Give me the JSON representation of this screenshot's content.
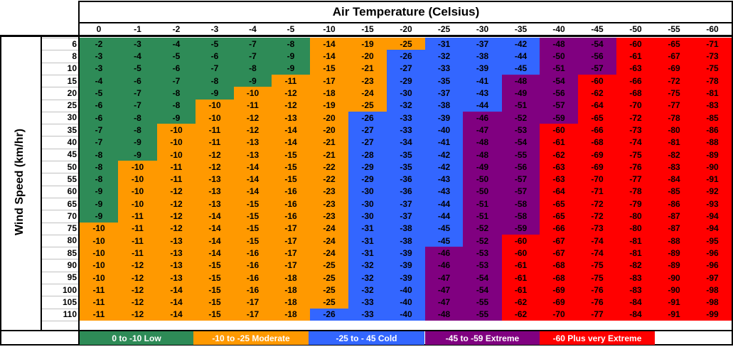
{
  "title": "Air Temperature (Celsius)",
  "ylabel": "Wind Speed (km/hr)",
  "temps": [
    "0",
    "-1",
    "-2",
    "-3",
    "-4",
    "-5",
    "-10",
    "-15",
    "-20",
    "-25",
    "-30",
    "-35",
    "-40",
    "-45",
    "-50",
    "-55",
    "-60"
  ],
  "speeds": [
    "6",
    "8",
    "10",
    "15",
    "20",
    "25",
    "30",
    "35",
    "40",
    "45",
    "50",
    "55",
    "60",
    "65",
    "70",
    "75",
    "80",
    "85",
    "90",
    "95",
    "100",
    "105",
    "110"
  ],
  "values": [
    [
      "-2",
      "-3",
      "-4",
      "-5",
      "-7",
      "-8",
      "-14",
      "-19",
      "-25",
      "-31",
      "-37",
      "-42",
      "-48",
      "-54",
      "-60",
      "-65",
      "-71"
    ],
    [
      "-3",
      "-4",
      "-5",
      "-6",
      "-7",
      "-9",
      "-14",
      "-20",
      "-26",
      "-32",
      "-38",
      "-44",
      "-50",
      "-56",
      "-61",
      "-67",
      "-73"
    ],
    [
      "-3",
      "-5",
      "-6",
      "-7",
      "-8",
      "-9",
      "-15",
      "-21",
      "-27",
      "-33",
      "-39",
      "-45",
      "-51",
      "-57",
      "-63",
      "-69",
      "-75"
    ],
    [
      "-4",
      "-6",
      "-7",
      "-8",
      "-9",
      "-11",
      "-17",
      "-23",
      "-29",
      "-35",
      "-41",
      "-48",
      "-54",
      "-60",
      "-66",
      "-72",
      "-78"
    ],
    [
      "-5",
      "-7",
      "-8",
      "-9",
      "-10",
      "-12",
      "-18",
      "-24",
      "-30",
      "-37",
      "-43",
      "-49",
      "-56",
      "-62",
      "-68",
      "-75",
      "-81"
    ],
    [
      "-6",
      "-7",
      "-8",
      "-10",
      "-11",
      "-12",
      "-19",
      "-25",
      "-32",
      "-38",
      "-44",
      "-51",
      "-57",
      "-64",
      "-70",
      "-77",
      "-83"
    ],
    [
      "-6",
      "-8",
      "-9",
      "-10",
      "-12",
      "-13",
      "-20",
      "-26",
      "-33",
      "-39",
      "-46",
      "-52",
      "-59",
      "-65",
      "-72",
      "-78",
      "-85"
    ],
    [
      "-7",
      "-8",
      "-10",
      "-11",
      "-12",
      "-14",
      "-20",
      "-27",
      "-33",
      "-40",
      "-47",
      "-53",
      "-60",
      "-66",
      "-73",
      "-80",
      "-86"
    ],
    [
      "-7",
      "-9",
      "-10",
      "-11",
      "-13",
      "-14",
      "-21",
      "-27",
      "-34",
      "-41",
      "-48",
      "-54",
      "-61",
      "-68",
      "-74",
      "-81",
      "-88"
    ],
    [
      "-8",
      "-9",
      "-10",
      "-12",
      "-13",
      "-15",
      "-21",
      "-28",
      "-35",
      "-42",
      "-48",
      "-55",
      "-62",
      "-69",
      "-75",
      "-82",
      "-89"
    ],
    [
      "-8",
      "-10",
      "-11",
      "-12",
      "-14",
      "-15",
      "-22",
      "-29",
      "-35",
      "-42",
      "-49",
      "-56",
      "-63",
      "-69",
      "-76",
      "-83",
      "-90"
    ],
    [
      "-8",
      "-10",
      "-11",
      "-13",
      "-14",
      "-15",
      "-22",
      "-29",
      "-36",
      "-43",
      "-50",
      "-57",
      "-63",
      "-70",
      "-77",
      "-84",
      "-91"
    ],
    [
      "-9",
      "-10",
      "-12",
      "-13",
      "-14",
      "-16",
      "-23",
      "-30",
      "-36",
      "-43",
      "-50",
      "-57",
      "-64",
      "-71",
      "-78",
      "-85",
      "-92"
    ],
    [
      "-9",
      "-10",
      "-12",
      "-13",
      "-15",
      "-16",
      "-23",
      "-30",
      "-37",
      "-44",
      "-51",
      "-58",
      "-65",
      "-72",
      "-79",
      "-86",
      "-93"
    ],
    [
      "-9",
      "-11",
      "-12",
      "-14",
      "-15",
      "-16",
      "-23",
      "-30",
      "-37",
      "-44",
      "-51",
      "-58",
      "-65",
      "-72",
      "-80",
      "-87",
      "-94"
    ],
    [
      "-10",
      "-11",
      "-12",
      "-14",
      "-15",
      "-17",
      "-24",
      "-31",
      "-38",
      "-45",
      "-52",
      "-59",
      "-66",
      "-73",
      "-80",
      "-87",
      "-94"
    ],
    [
      "-10",
      "-11",
      "-13",
      "-14",
      "-15",
      "-17",
      "-24",
      "-31",
      "-38",
      "-45",
      "-52",
      "-60",
      "-67",
      "-74",
      "-81",
      "-88",
      "-95"
    ],
    [
      "-10",
      "-11",
      "-13",
      "-14",
      "-16",
      "-17",
      "-24",
      "-31",
      "-39",
      "-46",
      "-53",
      "-60",
      "-67",
      "-74",
      "-81",
      "-89",
      "-96"
    ],
    [
      "-10",
      "-12",
      "-13",
      "-15",
      "-16",
      "-17",
      "-25",
      "-32",
      "-39",
      "-46",
      "-53",
      "-61",
      "-68",
      "-75",
      "-82",
      "-89",
      "-96"
    ],
    [
      "-10",
      "-12",
      "-13",
      "-15",
      "-16",
      "-18",
      "-25",
      "-32",
      "-39",
      "-47",
      "-54",
      "-61",
      "-68",
      "-75",
      "-83",
      "-90",
      "-97"
    ],
    [
      "-11",
      "-12",
      "-14",
      "-15",
      "-16",
      "-18",
      "-25",
      "-32",
      "-40",
      "-47",
      "-54",
      "-61",
      "-69",
      "-76",
      "-83",
      "-90",
      "-98"
    ],
    [
      "-11",
      "-12",
      "-14",
      "-15",
      "-17",
      "-18",
      "-25",
      "-33",
      "-40",
      "-47",
      "-55",
      "-62",
      "-69",
      "-76",
      "-84",
      "-91",
      "-98"
    ],
    [
      "-11",
      "-12",
      "-14",
      "-15",
      "-17",
      "-18",
      "-26",
      "-33",
      "-40",
      "-48",
      "-55",
      "-62",
      "-70",
      "-77",
      "-84",
      "-91",
      "-99"
    ]
  ],
  "colors": {
    "low": "#2e8b57",
    "moderate": "#ff9900",
    "cold": "#3366ff",
    "extreme": "#800080",
    "very_extreme": "#ff0000"
  },
  "legend": [
    {
      "label": "0 to -10 Low",
      "color": "#2e8b57"
    },
    {
      "label": "-10 to -25 Moderate",
      "color": "#ff9900"
    },
    {
      "label": "-25 to - 45 Cold",
      "color": "#3366ff"
    },
    {
      "label": "-45 to -59 Extreme",
      "color": "#800080"
    },
    {
      "label": "-60 Plus  very Extreme",
      "color": "#ff0000"
    }
  ]
}
